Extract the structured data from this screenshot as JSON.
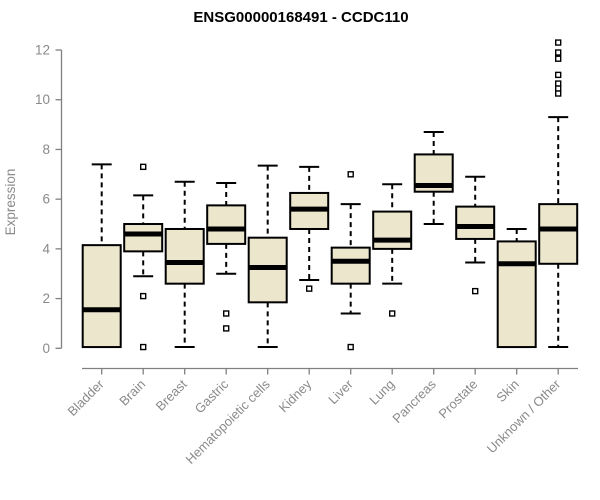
{
  "page": {
    "background": "#ffffff"
  },
  "colors": {
    "box_fill": "#ece6cd",
    "box_border": "#000000",
    "median": "#000000",
    "whisker": "#000000",
    "outlier_fill": "#ffffff",
    "outlier_border": "#000000",
    "axis": "#808080",
    "label": "#8a8a8a",
    "title": "#000000",
    "background": "#ffffff"
  },
  "chart_data": {
    "type": "boxplot",
    "title": "ENSG00000168491 - CCDC110",
    "xlabel": "",
    "ylabel": "Expression",
    "ylim": [
      0,
      12
    ],
    "yticks": [
      0,
      2,
      4,
      6,
      8,
      10,
      12
    ],
    "grid": false,
    "legend": false,
    "x_label_rotation_deg": 45,
    "categories": [
      "Bladder",
      "Brain",
      "Breast",
      "Gastric",
      "Hematopoietic cells",
      "Kidney",
      "Liver",
      "Lung",
      "Pancreas",
      "Prostate",
      "Skin",
      "Unknown / Other"
    ],
    "boxes": [
      {
        "category": "Bladder",
        "whisker_low": 0.05,
        "q1": 0.05,
        "median": 1.55,
        "q3": 4.15,
        "whisker_high": 7.4,
        "outliers": []
      },
      {
        "category": "Brain",
        "whisker_low": 2.9,
        "q1": 3.9,
        "median": 4.6,
        "q3": 5.0,
        "whisker_high": 6.15,
        "outliers": [
          7.3,
          2.1,
          0.05
        ]
      },
      {
        "category": "Breast",
        "whisker_low": 0.05,
        "q1": 2.6,
        "median": 3.45,
        "q3": 4.8,
        "whisker_high": 6.7,
        "outliers": []
      },
      {
        "category": "Gastric",
        "whisker_low": 3.0,
        "q1": 4.2,
        "median": 4.8,
        "q3": 5.75,
        "whisker_high": 6.65,
        "outliers": [
          1.4,
          0.8
        ]
      },
      {
        "category": "Hematopoietic cells",
        "whisker_low": 0.05,
        "q1": 1.85,
        "median": 3.25,
        "q3": 4.45,
        "whisker_high": 7.35,
        "outliers": []
      },
      {
        "category": "Kidney",
        "whisker_low": 2.75,
        "q1": 4.8,
        "median": 5.6,
        "q3": 6.25,
        "whisker_high": 7.3,
        "outliers": [
          2.4
        ]
      },
      {
        "category": "Liver",
        "whisker_low": 1.4,
        "q1": 2.6,
        "median": 3.5,
        "q3": 4.05,
        "whisker_high": 5.8,
        "outliers": [
          7.0,
          0.05
        ]
      },
      {
        "category": "Lung",
        "whisker_low": 2.6,
        "q1": 4.0,
        "median": 4.35,
        "q3": 5.5,
        "whisker_high": 6.6,
        "outliers": [
          1.4
        ]
      },
      {
        "category": "Pancreas",
        "whisker_low": 5.0,
        "q1": 6.3,
        "median": 6.55,
        "q3": 7.8,
        "whisker_high": 8.7,
        "outliers": []
      },
      {
        "category": "Prostate",
        "whisker_low": 3.45,
        "q1": 4.4,
        "median": 4.9,
        "q3": 5.7,
        "whisker_high": 6.9,
        "outliers": [
          2.3
        ]
      },
      {
        "category": "Skin",
        "whisker_low": 0.05,
        "q1": 0.05,
        "median": 3.4,
        "q3": 4.3,
        "whisker_high": 4.8,
        "outliers": []
      },
      {
        "category": "Unknown / Other",
        "whisker_low": 0.05,
        "q1": 3.4,
        "median": 4.8,
        "q3": 5.8,
        "whisker_high": 9.3,
        "outliers": [
          12.3,
          11.9,
          11.65,
          11.0,
          10.65,
          10.45,
          10.25
        ]
      }
    ]
  }
}
